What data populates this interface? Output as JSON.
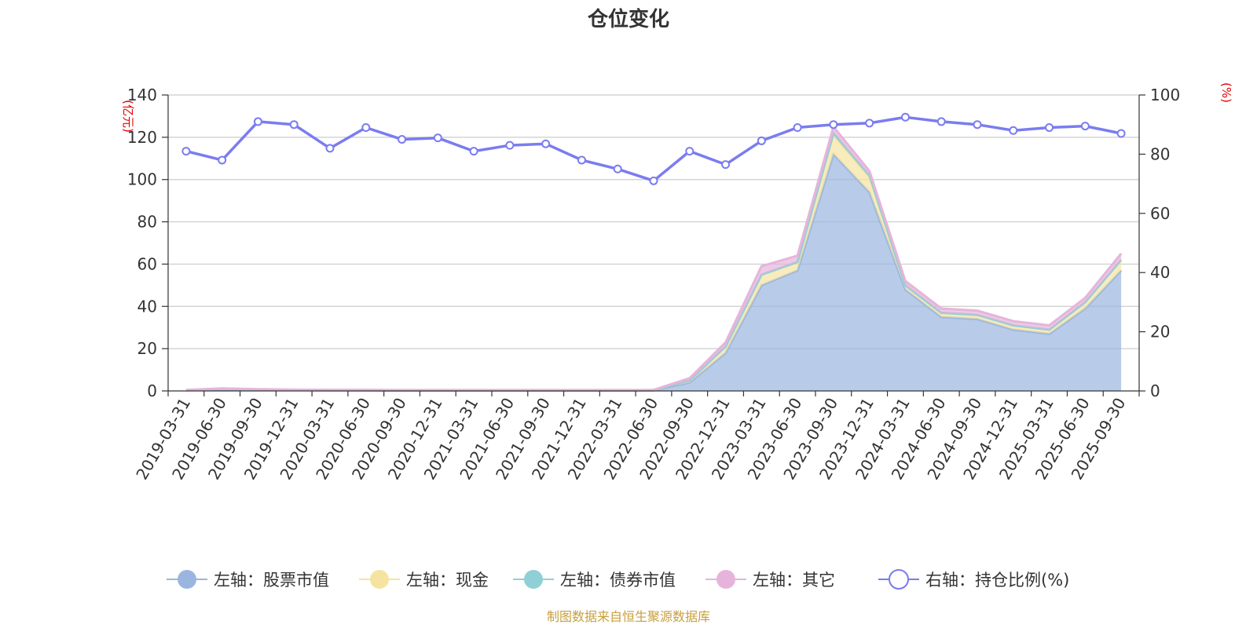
{
  "chart_data": {
    "type": "area",
    "title": "仓位变化",
    "source_note": "制图数据来自恒生聚源数据库",
    "left_axis": {
      "unit": "(亿元)",
      "ylim": [
        0,
        140
      ],
      "ticks": [
        0,
        20,
        40,
        60,
        80,
        100,
        120,
        140
      ]
    },
    "right_axis": {
      "unit": "(%)",
      "ylim": [
        0,
        100
      ],
      "ticks": [
        0,
        20,
        40,
        60,
        80,
        100
      ]
    },
    "categories": [
      "2019-03-31",
      "2019-06-30",
      "2019-09-30",
      "2019-12-31",
      "2020-03-31",
      "2020-06-30",
      "2020-09-30",
      "2020-12-31",
      "2021-03-31",
      "2021-06-30",
      "2021-09-30",
      "2021-12-31",
      "2022-03-31",
      "2022-06-30",
      "2022-09-30",
      "2022-12-31",
      "2023-03-31",
      "2023-06-30",
      "2023-09-30",
      "2023-12-31",
      "2024-03-31",
      "2024-06-30",
      "2024-09-30",
      "2024-12-31",
      "2025-03-31",
      "2025-06-30",
      "2025-09-30"
    ],
    "series": [
      {
        "name": "左轴：股票市值",
        "axis": "left",
        "stack": true,
        "color": "#9ab5e0",
        "values": [
          0.3,
          0.8,
          0.5,
          0.4,
          0.3,
          0.3,
          0.2,
          0.2,
          0.2,
          0.2,
          0.2,
          0.2,
          0.2,
          0.3,
          4,
          18,
          50,
          57,
          112,
          94,
          48,
          35,
          34,
          29,
          27,
          39,
          57
        ]
      },
      {
        "name": "左轴：现金",
        "axis": "left",
        "stack": true,
        "color": "#f5e4a0",
        "values": [
          0.1,
          0.2,
          0.2,
          0.1,
          0.1,
          0.1,
          0.1,
          0.1,
          0.1,
          0.1,
          0.1,
          0.1,
          0.1,
          0.1,
          1,
          3,
          5,
          4,
          9,
          7,
          2,
          2,
          2,
          2,
          2,
          3,
          5
        ]
      },
      {
        "name": "左轴：债券市值",
        "axis": "left",
        "stack": true,
        "color": "#8fd0d6",
        "values": [
          0,
          0,
          0,
          0,
          0,
          0,
          0,
          0,
          0,
          0,
          0,
          0,
          0,
          0,
          0,
          0,
          0,
          0,
          1,
          1,
          0,
          0,
          0,
          0,
          0,
          0,
          0
        ]
      },
      {
        "name": "左轴：其它",
        "axis": "left",
        "stack": true,
        "color": "#e6b4db",
        "values": [
          0.1,
          0.2,
          0.1,
          0.1,
          0.1,
          0.1,
          0.1,
          0.1,
          0.1,
          0.1,
          0.1,
          0.1,
          0.1,
          0.1,
          1,
          2,
          4,
          3,
          3,
          2,
          2,
          2,
          2,
          2,
          2,
          2,
          3
        ]
      },
      {
        "name": "右轴：持仓比例(%)",
        "axis": "right",
        "stack": false,
        "color": "#7a7cf0",
        "values": [
          81,
          78,
          91,
          90,
          82,
          89,
          85,
          85.5,
          81,
          83,
          83.5,
          78,
          75,
          71,
          81,
          76.5,
          84.5,
          89,
          90,
          90.5,
          92.5,
          91,
          90,
          88,
          89,
          89.5,
          87
        ]
      }
    ]
  }
}
